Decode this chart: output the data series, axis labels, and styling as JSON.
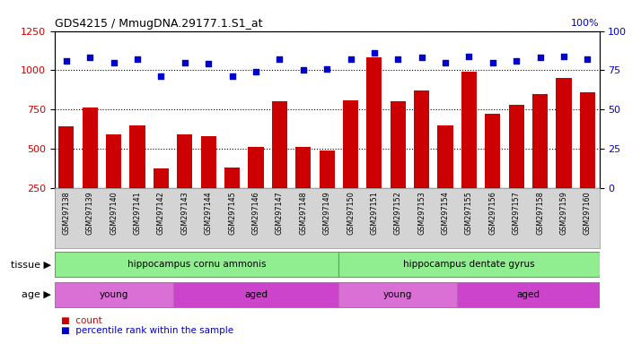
{
  "title": "GDS4215 / MmugDNA.29177.1.S1_at",
  "samples": [
    "GSM297138",
    "GSM297139",
    "GSM297140",
    "GSM297141",
    "GSM297142",
    "GSM297143",
    "GSM297144",
    "GSM297145",
    "GSM297146",
    "GSM297147",
    "GSM297148",
    "GSM297149",
    "GSM297150",
    "GSM297151",
    "GSM297152",
    "GSM297153",
    "GSM297154",
    "GSM297155",
    "GSM297156",
    "GSM297157",
    "GSM297158",
    "GSM297159",
    "GSM297160"
  ],
  "counts": [
    640,
    760,
    590,
    650,
    375,
    590,
    580,
    380,
    510,
    800,
    510,
    490,
    810,
    1080,
    800,
    870,
    645,
    990,
    720,
    780,
    850,
    950,
    860
  ],
  "percentiles": [
    81,
    83,
    80,
    82,
    71,
    80,
    79,
    71,
    74,
    82,
    75,
    76,
    82,
    86,
    82,
    83,
    80,
    84,
    80,
    81,
    83,
    84,
    82
  ],
  "bar_color": "#cc0000",
  "dot_color": "#0000cc",
  "ylim_left": [
    250,
    1250
  ],
  "ylim_right": [
    0,
    100
  ],
  "yticks_left": [
    250,
    500,
    750,
    1000,
    1250
  ],
  "yticks_right": [
    0,
    25,
    50,
    75,
    100
  ],
  "tissue_groups": [
    {
      "label": "hippocampus cornu ammonis",
      "start": 0,
      "end": 12,
      "color": "#90ee90"
    },
    {
      "label": "hippocampus dentate gyrus",
      "start": 12,
      "end": 23,
      "color": "#90ee90"
    }
  ],
  "age_group_defs": [
    {
      "label": "young",
      "start": 0,
      "end": 5,
      "color": "#da70d6"
    },
    {
      "label": "aged",
      "start": 5,
      "end": 12,
      "color": "#cc44cc"
    },
    {
      "label": "young",
      "start": 12,
      "end": 17,
      "color": "#da70d6"
    },
    {
      "label": "aged",
      "start": 17,
      "end": 23,
      "color": "#cc44cc"
    }
  ],
  "tissue_label": "tissue",
  "age_label": "age",
  "xtick_bg_color": "#d4d4d4",
  "plot_bg": "#ffffff",
  "grid_color": "#000000",
  "legend_count_label": "count",
  "legend_pct_label": "percentile rank within the sample",
  "right_axis_label": "100%"
}
